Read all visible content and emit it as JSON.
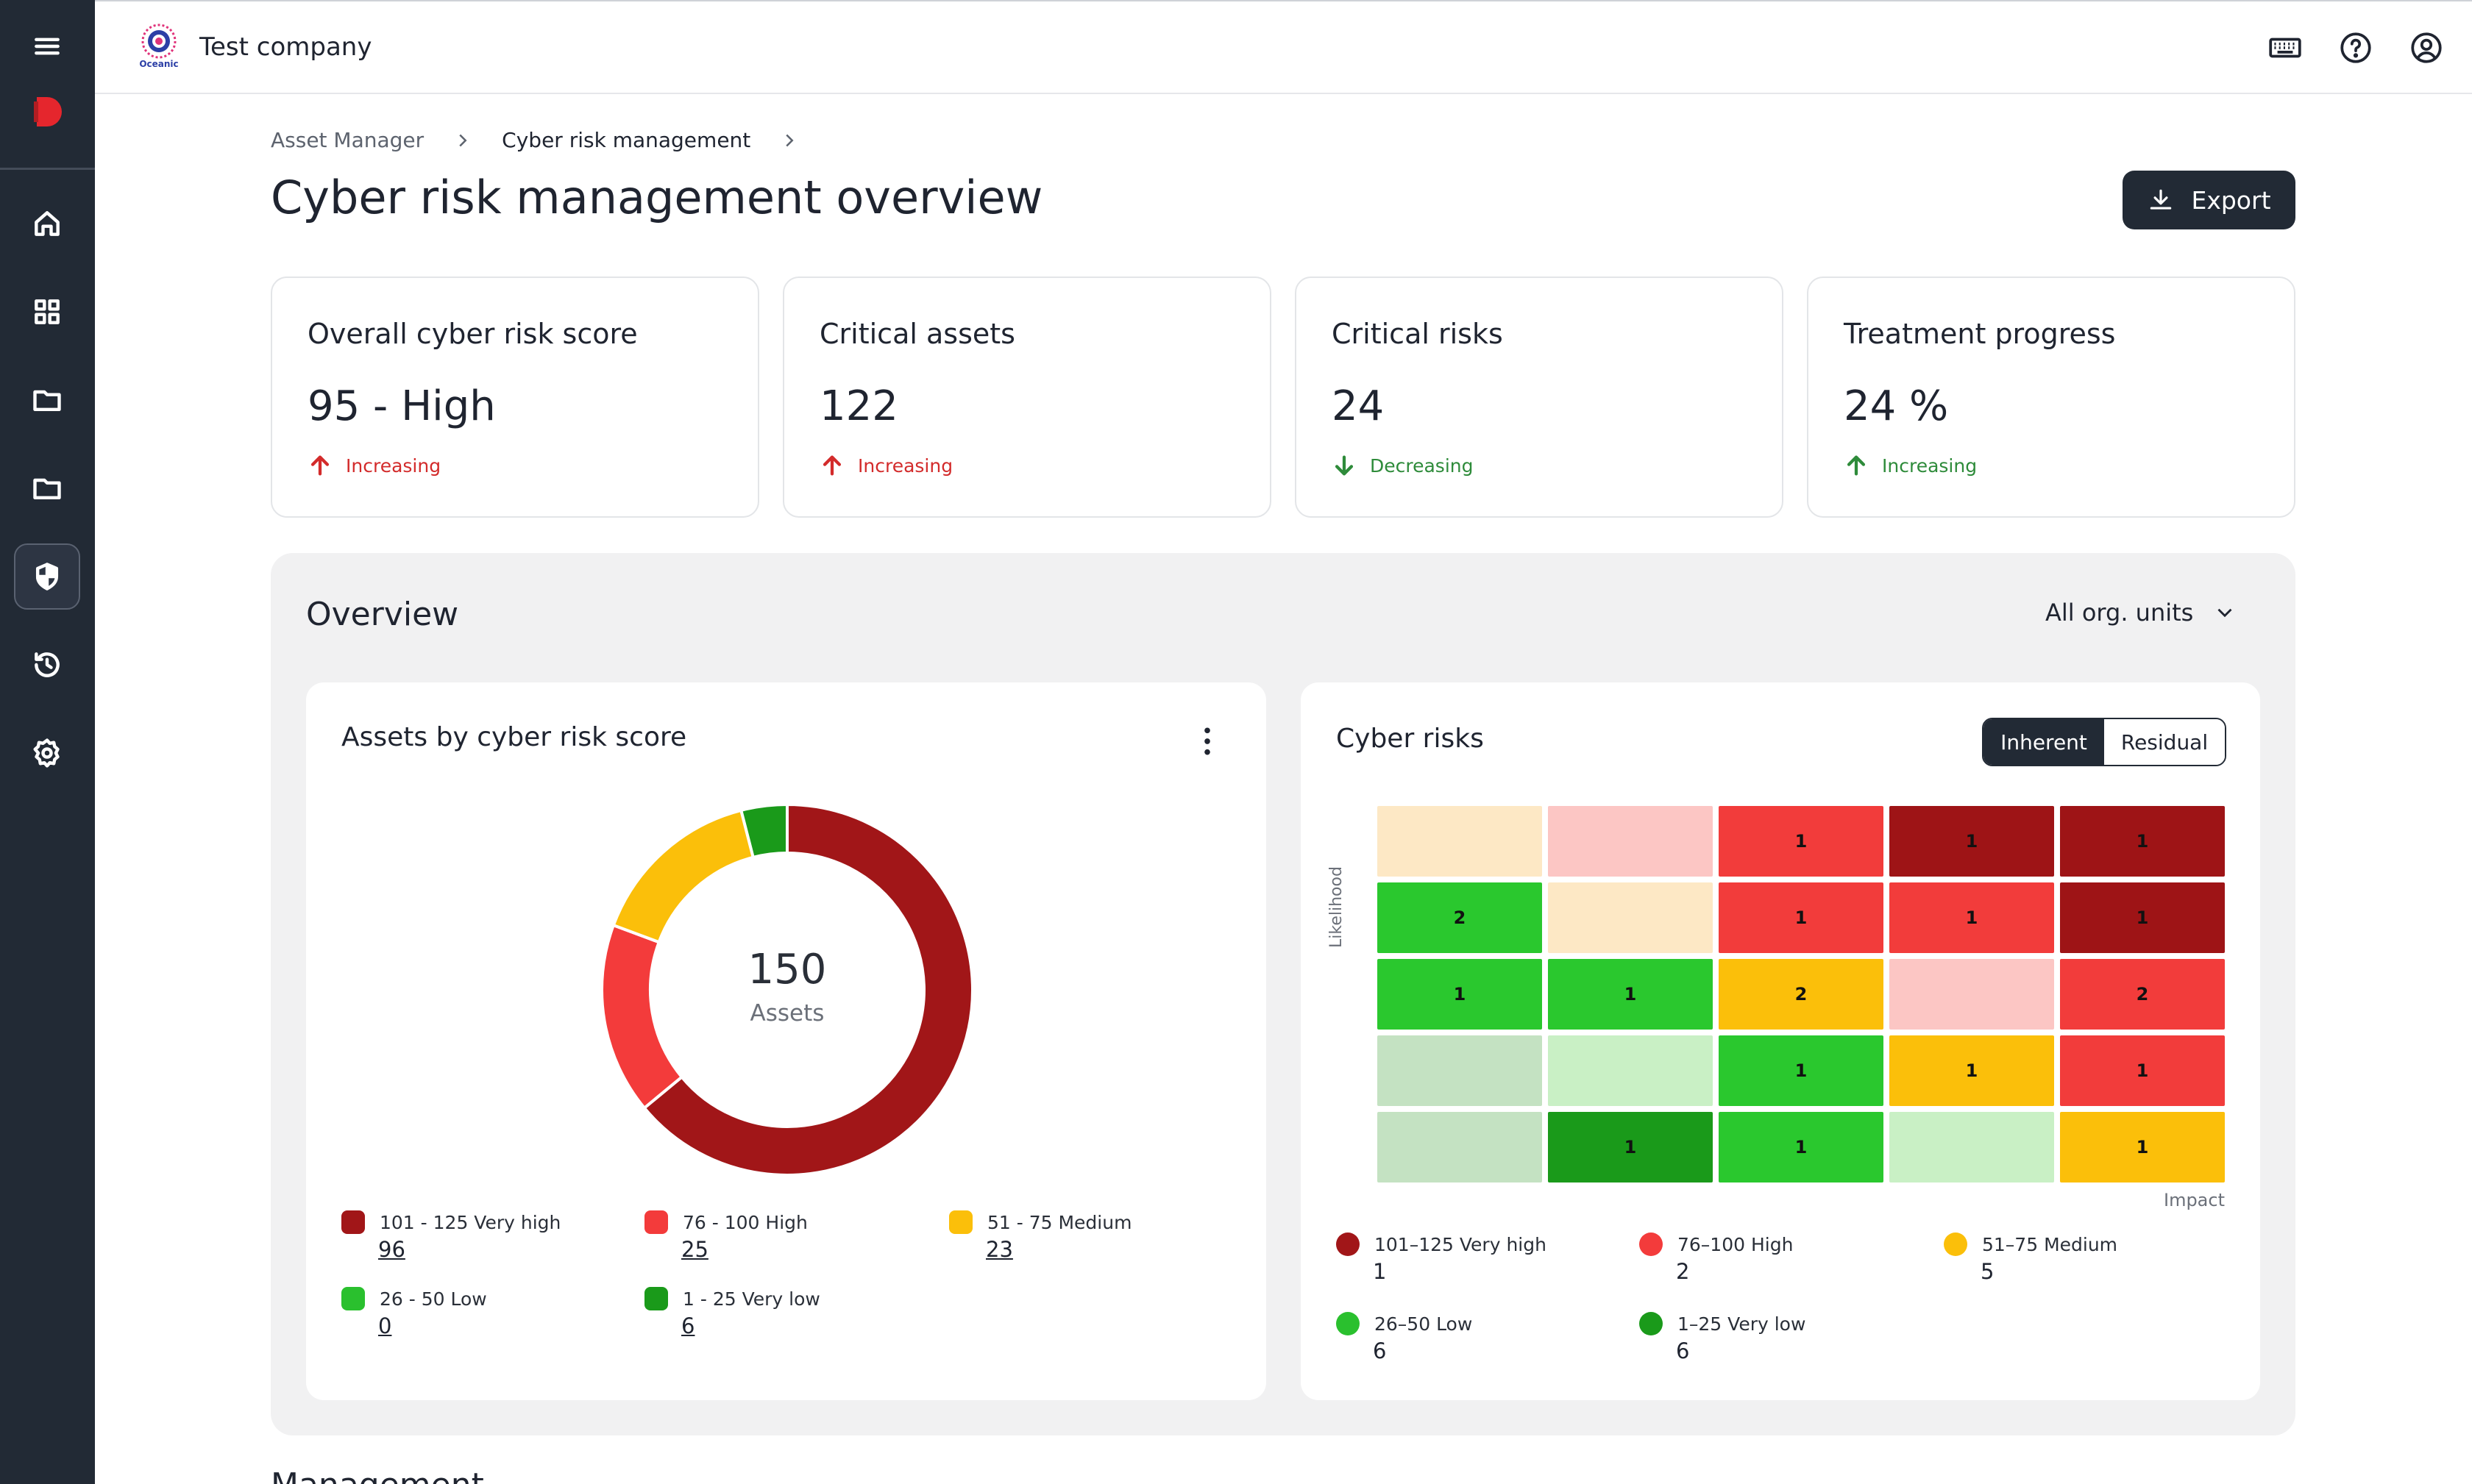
{
  "header": {
    "company": "Test company",
    "logo_text": "Oceanic"
  },
  "breadcrumb": {
    "items": [
      "Asset Manager",
      "Cyber risk management"
    ]
  },
  "page": {
    "title": "Cyber risk management overview",
    "export_label": "Export"
  },
  "kpis": [
    {
      "title": "Overall cyber risk score",
      "value": "95 - High",
      "trend": "Increasing",
      "direction": "up",
      "tone": "red"
    },
    {
      "title": "Critical assets",
      "value": "122",
      "trend": "Increasing",
      "direction": "up",
      "tone": "red"
    },
    {
      "title": "Critical risks",
      "value": "24",
      "trend": "Decreasing",
      "direction": "down",
      "tone": "green"
    },
    {
      "title": "Treatment progress",
      "value": "24 %",
      "trend": "Increasing",
      "direction": "up",
      "tone": "green"
    }
  ],
  "overview": {
    "title": "Overview",
    "org_filter": "All org. units"
  },
  "assets_chart": {
    "title": "Assets by cyber risk score",
    "center_value": "150",
    "center_label": "Assets",
    "chart_data": {
      "type": "pie",
      "title": "Assets by cyber risk score",
      "categories": [
        "101 - 125 Very high",
        "76 - 100 High",
        "51 - 75 Medium",
        "26 - 50 Low",
        "1 - 25 Very low"
      ],
      "values": [
        96,
        25,
        23,
        0,
        6
      ],
      "colors": [
        "#a11618",
        "#f33b3b",
        "#fbbf0a",
        "#2ac02e",
        "#1a9a1a"
      ]
    },
    "legend": [
      {
        "label": "101 - 125 Very high",
        "count": "96",
        "color": "#a11618"
      },
      {
        "label": "76 - 100 High",
        "count": "25",
        "color": "#f33b3b"
      },
      {
        "label": "51 - 75 Medium",
        "count": "23",
        "color": "#fbbf0a"
      },
      {
        "label": "26 - 50 Low",
        "count": "0",
        "color": "#2ac02e"
      },
      {
        "label": "1 - 25 Very low",
        "count": "6",
        "color": "#1a9a1a"
      }
    ]
  },
  "cyber_risks": {
    "title": "Cyber risks",
    "toggle": [
      "Inherent",
      "Residual"
    ],
    "y_label": "Likelihood",
    "x_label": "Impact",
    "chart_data": {
      "type": "heatmap",
      "xlabel": "Impact",
      "ylabel": "Likelihood",
      "rows": [
        [
          "",
          "",
          "1",
          "1",
          "1"
        ],
        [
          "2",
          "",
          "1",
          "1",
          "1"
        ],
        [
          "1",
          "1",
          "2",
          "",
          "2"
        ],
        [
          "",
          "",
          "1",
          "1",
          "1"
        ],
        [
          "",
          "1",
          "1",
          "",
          "1"
        ]
      ],
      "colors": [
        [
          "#fde8c5",
          "#fcc6c4",
          "#f23c3b",
          "#9e1416",
          "#9e1416"
        ],
        [
          "#2ac82e",
          "#fde8c5",
          "#f23c3b",
          "#f23c3b",
          "#9e1416"
        ],
        [
          "#2ac82e",
          "#2ac82e",
          "#fbbf0a",
          "#fcc6c4",
          "#f23c3b"
        ],
        [
          "#c4e2c2",
          "#c9f0c5",
          "#2ac82e",
          "#fbbf0a",
          "#f23c3b"
        ],
        [
          "#c4e2c2",
          "#1a9a1a",
          "#2ac82e",
          "#c9f0c5",
          "#fbbf0a"
        ]
      ]
    },
    "legend": [
      {
        "label": "101–125 Very high",
        "count": "1",
        "color": "#a11618"
      },
      {
        "label": "76–100 High",
        "count": "2",
        "color": "#f33b3b"
      },
      {
        "label": "51–75 Medium",
        "count": "5",
        "color": "#fbbf0a"
      },
      {
        "label": "26–50 Low",
        "count": "6",
        "color": "#2ac02e"
      },
      {
        "label": "1–25 Very low",
        "count": "6",
        "color": "#1a9a1a"
      }
    ]
  },
  "footer_partial": "Management"
}
